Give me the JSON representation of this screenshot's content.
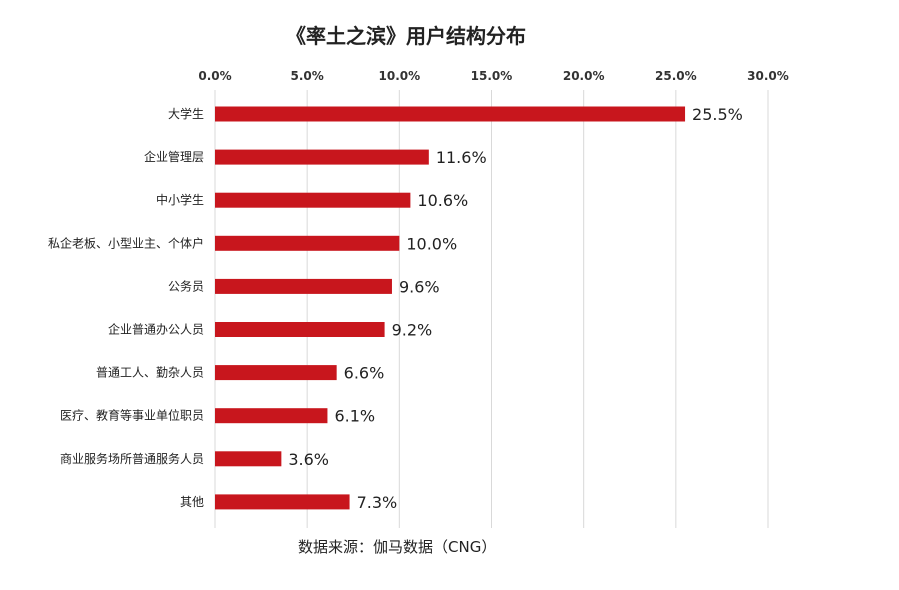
{
  "chart_data": {
    "type": "bar",
    "orientation": "horizontal",
    "title": "《率土之滨》用户结构分布",
    "categories": [
      "大学生",
      "企业管理层",
      "中小学生",
      "私企老板、小型业主、个体户",
      "公务员",
      "企业普通办公人员",
      "普通工人、勤杂人员",
      "医疗、教育等事业单位职员",
      "商业服务场所普通服务人员",
      "其他"
    ],
    "values": [
      25.5,
      11.6,
      10.6,
      10.0,
      9.6,
      9.2,
      6.6,
      6.1,
      3.6,
      7.3
    ],
    "value_labels": [
      "25.5%",
      "11.6%",
      "10.6%",
      "10.0%",
      "9.6%",
      "9.2%",
      "6.6%",
      "6.1%",
      "3.6%",
      "7.3%"
    ],
    "xlim": [
      0,
      30
    ],
    "xticks": [
      0,
      5,
      10,
      15,
      20,
      25,
      30
    ],
    "xtick_labels": [
      "0.0%",
      "5.0%",
      "10.0%",
      "15.0%",
      "20.0%",
      "25.0%",
      "30.0%"
    ],
    "xaxis_position": "top",
    "grid": true,
    "bar_color": "#c8161d",
    "grid_color": "#d9d9d9",
    "source": "数据来源：伽马数据（CNG）"
  }
}
